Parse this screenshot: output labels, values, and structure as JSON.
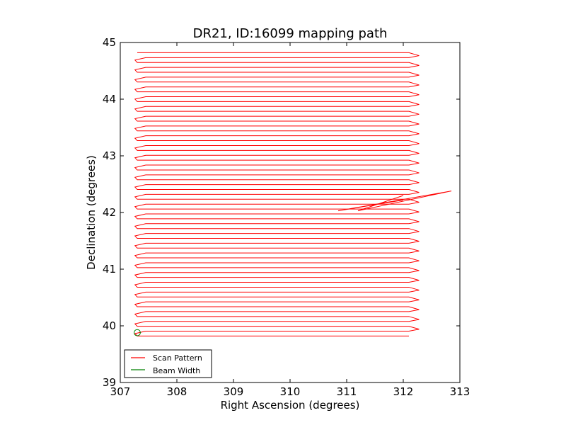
{
  "chart_data": {
    "type": "line",
    "title": "DR21, ID:16099 mapping path",
    "xlabel": "Right Ascension (degrees)",
    "ylabel": "Declination (degrees)",
    "xlim": [
      307,
      313
    ],
    "ylim": [
      39,
      45
    ],
    "xticks": [
      "307",
      "308",
      "309",
      "310",
      "311",
      "312",
      "313"
    ],
    "yticks": [
      "39",
      "40",
      "41",
      "42",
      "43",
      "44",
      "45"
    ],
    "grid": false,
    "legend_position": "lower-left",
    "series": [
      {
        "name": "Scan Pattern",
        "color": "#ff0000",
        "pattern": "raster",
        "ra_left": 307.3,
        "ra_right": 312.1,
        "ra_right_peak": 312.28,
        "dec_start": 39.82,
        "dec_end": 44.82,
        "row_spacing": 0.0862,
        "excursion": {
          "ra": [
            312.0,
            311.2,
            312.85,
            310.85,
            312.0
          ],
          "dec": [
            42.3,
            42.03,
            42.38,
            42.03,
            42.22
          ]
        }
      },
      {
        "name": "Beam Width",
        "color": "#008000",
        "center": [
          307.3,
          39.88
        ],
        "radius_deg": 0.055
      }
    ]
  }
}
